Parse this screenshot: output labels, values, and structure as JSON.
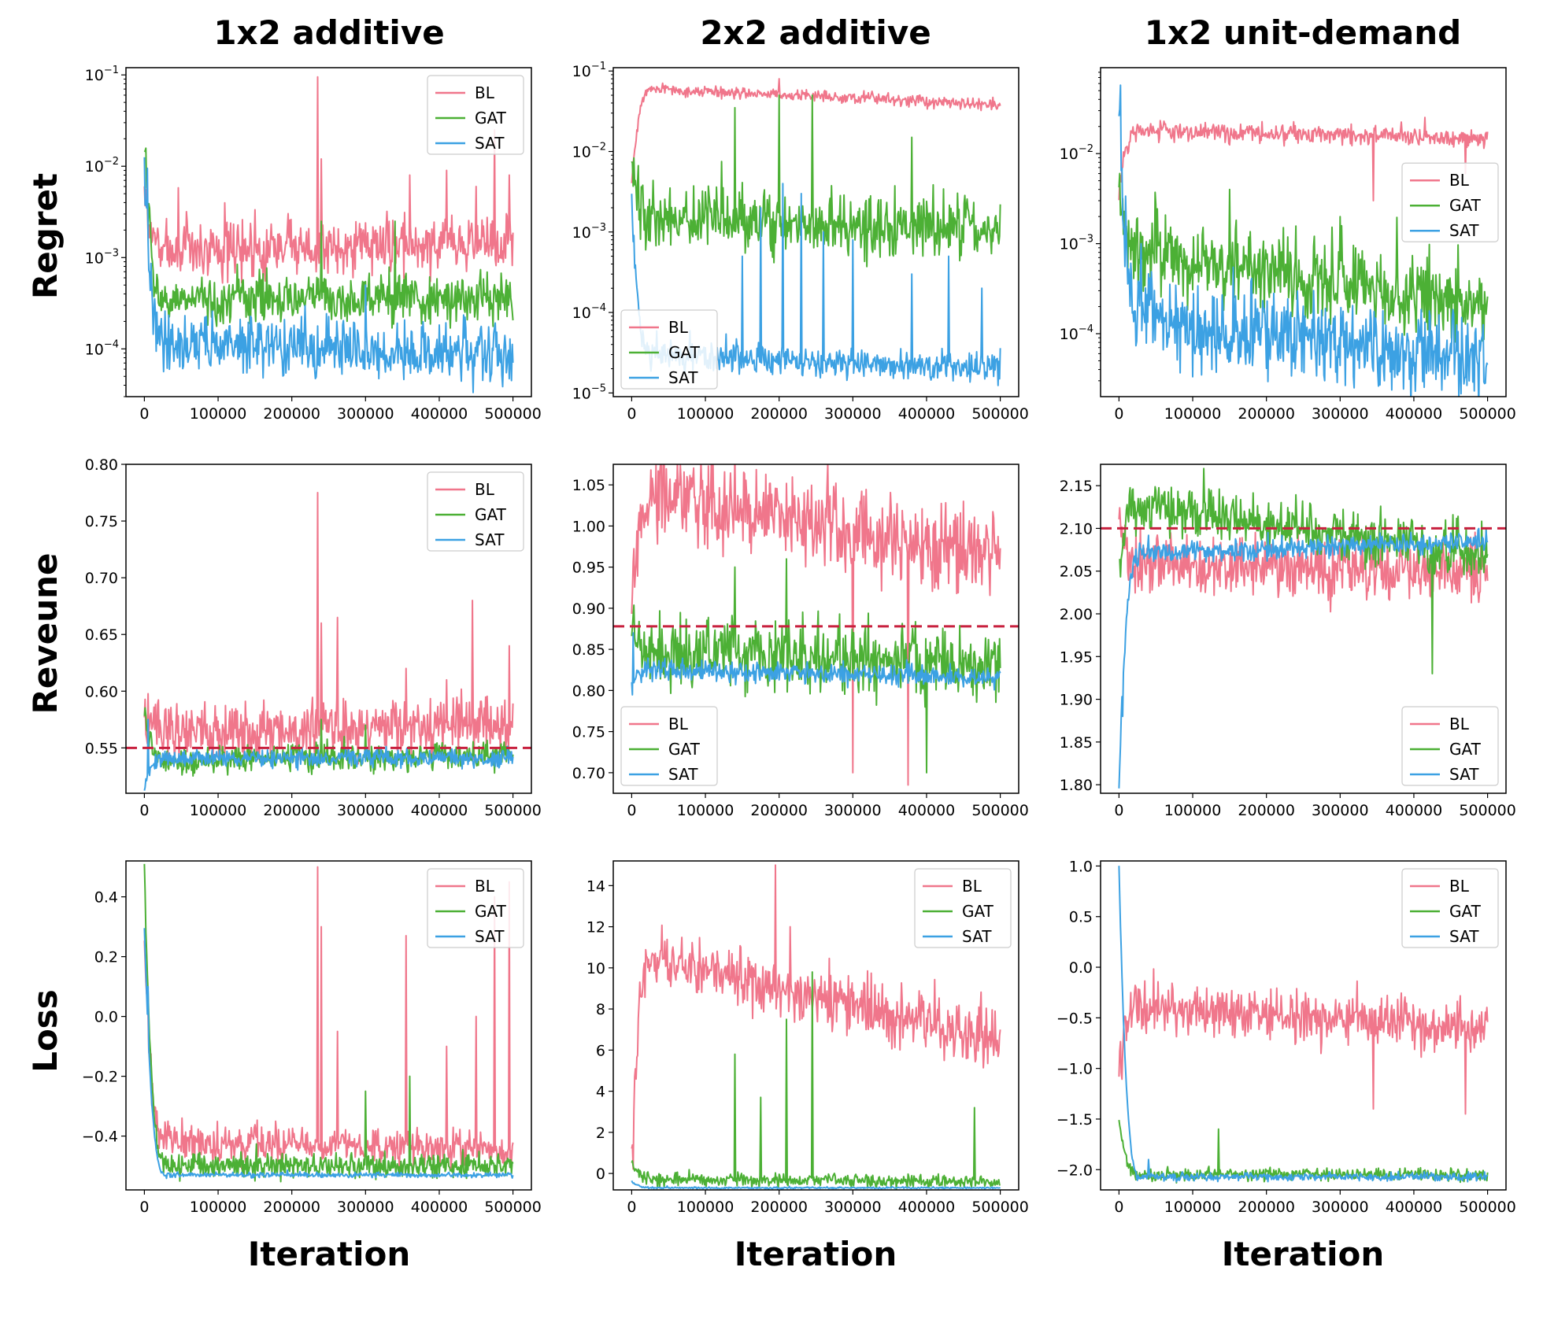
{
  "colors": {
    "BL": "#f0768b",
    "GAT": "#4cb035",
    "SAT": "#3ca1e3",
    "reference": "#c8203e"
  },
  "columns": [
    "1x2 additive",
    "2x2 additive",
    "1x2 unit-demand"
  ],
  "rows": [
    "Regret",
    "Reveune",
    "Loss"
  ],
  "xlabel": "Iteration",
  "chart_data": [
    {
      "type": "line",
      "title": "1x2 additive",
      "ylabel": "Regret",
      "yscale": "log",
      "ylim": [
        3e-05,
        0.12
      ],
      "xlim": [
        -25000,
        525000
      ],
      "xticks": [
        "0",
        "100000",
        "200000",
        "300000",
        "400000",
        "500000"
      ],
      "yticks": [
        {
          "v": 0.1,
          "base": "10",
          "exp": "−1"
        },
        {
          "v": 0.01,
          "base": "10",
          "exp": "−2"
        },
        {
          "v": 0.001,
          "base": "10",
          "exp": "−3"
        },
        {
          "v": 0.0001,
          "base": "10",
          "exp": "−4"
        }
      ],
      "legend": {
        "position": "top-right",
        "entries": [
          "BL",
          "GAT",
          "SAT"
        ]
      },
      "series": [
        {
          "name": "BL",
          "start": 0.005,
          "end": 0.0015,
          "mid": 0.0012,
          "noise": 0.35,
          "spikes": [
            [
              235000,
              0.095
            ],
            [
              240000,
              0.012
            ],
            [
              360000,
              0.008
            ],
            [
              410000,
              0.009
            ],
            [
              450000,
              0.006
            ],
            [
              475000,
              0.025
            ],
            [
              495000,
              0.008
            ]
          ]
        },
        {
          "name": "GAT",
          "start": 0.02,
          "end": 0.00035,
          "mid": 0.00035,
          "noise": 0.3,
          "spikes": [
            [
              240000,
              0.0025
            ],
            [
              340000,
              0.0025
            ]
          ]
        },
        {
          "name": "SAT",
          "start": 0.008,
          "end": 8e-05,
          "mid": 0.00012,
          "noise": 0.35,
          "spikes": [
            [
              300000,
              0.0005
            ]
          ]
        }
      ]
    },
    {
      "type": "line",
      "title": "2x2 additive",
      "ylabel": "Regret",
      "yscale": "log",
      "ylim": [
        9e-06,
        0.11
      ],
      "xlim": [
        -25000,
        525000
      ],
      "xticks": [
        "0",
        "100000",
        "200000",
        "300000",
        "400000",
        "500000"
      ],
      "yticks": [
        {
          "v": 0.1,
          "base": "10",
          "exp": "−1"
        },
        {
          "v": 0.01,
          "base": "10",
          "exp": "−2"
        },
        {
          "v": 0.001,
          "base": "10",
          "exp": "−3"
        },
        {
          "v": 0.0001,
          "base": "10",
          "exp": "−4"
        },
        {
          "v": 1e-05,
          "base": "10",
          "exp": "−5"
        }
      ],
      "legend": {
        "position": "bottom-left",
        "entries": [
          "BL",
          "GAT",
          "SAT"
        ]
      },
      "series": [
        {
          "name": "BL",
          "start": 0.004,
          "end": 0.038,
          "mid": 0.06,
          "noise": 0.08,
          "spikes": [
            [
              200000,
              0.08
            ]
          ]
        },
        {
          "name": "GAT",
          "start": 0.006,
          "end": 0.001,
          "mid": 0.0015,
          "noise": 0.45,
          "spikes": [
            [
              140000,
              0.035
            ],
            [
              200000,
              0.05
            ],
            [
              245000,
              0.05
            ],
            [
              380000,
              0.015
            ]
          ]
        },
        {
          "name": "SAT",
          "start": 0.0025,
          "end": 2e-05,
          "mid": 3e-05,
          "noise": 0.2,
          "spikes": [
            [
              150000,
              0.0005
            ],
            [
              175000,
              0.002
            ],
            [
              205000,
              0.004
            ],
            [
              230000,
              0.003
            ],
            [
              260000,
              0.001
            ],
            [
              300000,
              0.0008
            ],
            [
              380000,
              0.0003
            ],
            [
              430000,
              0.0005
            ],
            [
              475000,
              0.0002
            ]
          ]
        }
      ]
    },
    {
      "type": "line",
      "title": "1x2 unit-demand",
      "ylabel": "Regret",
      "yscale": "log",
      "ylim": [
        2e-05,
        0.09
      ],
      "xlim": [
        -25000,
        525000
      ],
      "xticks": [
        "0",
        "100000",
        "200000",
        "300000",
        "400000",
        "500000"
      ],
      "yticks": [
        {
          "v": 0.01,
          "base": "10",
          "exp": "−2"
        },
        {
          "v": 0.001,
          "base": "10",
          "exp": "−3"
        },
        {
          "v": 0.0001,
          "base": "10",
          "exp": "−4"
        }
      ],
      "legend": {
        "position": "center-right",
        "entries": [
          "BL",
          "GAT",
          "SAT"
        ]
      },
      "series": [
        {
          "name": "BL",
          "start": 0.004,
          "end": 0.015,
          "mid": 0.018,
          "noise": 0.12,
          "spikes": [
            [
              345000,
              0.003
            ],
            [
              470000,
              0.006
            ]
          ]
        },
        {
          "name": "GAT",
          "start": 0.004,
          "end": 0.0002,
          "mid": 0.0008,
          "noise": 0.5,
          "spikes": [
            [
              150000,
              0.004
            ],
            [
              300000,
              0.002
            ]
          ]
        },
        {
          "name": "SAT",
          "start": 0.06,
          "end": 5e-05,
          "mid": 0.00015,
          "noise": 0.55,
          "spikes": [
            [
              30000,
              0.001
            ]
          ]
        }
      ]
    },
    {
      "type": "line",
      "title": "",
      "ylabel": "Reveune",
      "yscale": "linear",
      "ylim": [
        0.51,
        0.8
      ],
      "xlim": [
        -25000,
        525000
      ],
      "xticks": [
        "0",
        "100000",
        "200000",
        "300000",
        "400000",
        "500000"
      ],
      "yticks": [
        {
          "v": 0.55,
          "label": "0.55"
        },
        {
          "v": 0.6,
          "label": "0.60"
        },
        {
          "v": 0.65,
          "label": "0.65"
        },
        {
          "v": 0.7,
          "label": "0.70"
        },
        {
          "v": 0.75,
          "label": "0.75"
        },
        {
          "v": 0.8,
          "label": "0.80"
        }
      ],
      "reference_line": 0.55,
      "legend": {
        "position": "top-right",
        "entries": [
          "BL",
          "GAT",
          "SAT"
        ]
      },
      "series": [
        {
          "name": "BL",
          "start": 0.585,
          "end": 0.57,
          "mid": 0.565,
          "noise": 0.012,
          "spikes": [
            [
              235000,
              0.775
            ],
            [
              240000,
              0.66
            ],
            [
              262000,
              0.665
            ],
            [
              355000,
              0.62
            ],
            [
              410000,
              0.61
            ],
            [
              445000,
              0.68
            ],
            [
              495000,
              0.64
            ]
          ]
        },
        {
          "name": "GAT",
          "start": 0.58,
          "end": 0.545,
          "mid": 0.538,
          "noise": 0.006,
          "spikes": [
            [
              240000,
              0.575
            ],
            [
              300000,
              0.57
            ]
          ]
        },
        {
          "name": "SAT",
          "start": 0.52,
          "end": 0.542,
          "mid": 0.54,
          "noise": 0.004,
          "spikes": [
            [
              5000,
              0.575
            ]
          ]
        }
      ]
    },
    {
      "type": "line",
      "title": "",
      "ylabel": "Reveune",
      "yscale": "linear",
      "ylim": [
        0.675,
        1.075
      ],
      "xlim": [
        -25000,
        525000
      ],
      "xticks": [
        "0",
        "100000",
        "200000",
        "300000",
        "400000",
        "500000"
      ],
      "yticks": [
        {
          "v": 0.7,
          "label": "0.70"
        },
        {
          "v": 0.75,
          "label": "0.75"
        },
        {
          "v": 0.8,
          "label": "0.80"
        },
        {
          "v": 0.85,
          "label": "0.85"
        },
        {
          "v": 0.9,
          "label": "0.90"
        },
        {
          "v": 0.95,
          "label": "0.95"
        },
        {
          "v": 1.0,
          "label": "1.00"
        },
        {
          "v": 1.05,
          "label": "1.05"
        }
      ],
      "reference_line": 0.878,
      "legend": {
        "position": "bottom-left",
        "entries": [
          "BL",
          "GAT",
          "SAT"
        ]
      },
      "series": [
        {
          "name": "BL",
          "start": 0.87,
          "end": 0.96,
          "mid": 1.04,
          "noise": 0.025,
          "spikes": [
            [
              300000,
              0.7
            ],
            [
              375000,
              0.685
            ],
            [
              450000,
              1.03
            ]
          ]
        },
        {
          "name": "GAT",
          "start": 0.88,
          "end": 0.83,
          "mid": 0.85,
          "noise": 0.02,
          "spikes": [
            [
              140000,
              0.95
            ],
            [
              210000,
              0.96
            ],
            [
              400000,
              0.7
            ]
          ]
        },
        {
          "name": "SAT",
          "start": 0.8,
          "end": 0.815,
          "mid": 0.825,
          "noise": 0.006,
          "spikes": [
            [
              2000,
              0.87
            ]
          ]
        }
      ]
    },
    {
      "type": "line",
      "title": "",
      "ylabel": "Reveune",
      "yscale": "linear",
      "ylim": [
        1.79,
        2.175
      ],
      "xlim": [
        -25000,
        525000
      ],
      "xticks": [
        "0",
        "100000",
        "200000",
        "300000",
        "400000",
        "500000"
      ],
      "yticks": [
        {
          "v": 1.8,
          "label": "1.80"
        },
        {
          "v": 1.85,
          "label": "1.85"
        },
        {
          "v": 1.9,
          "label": "1.90"
        },
        {
          "v": 1.95,
          "label": "1.95"
        },
        {
          "v": 2.0,
          "label": "2.00"
        },
        {
          "v": 2.05,
          "label": "2.05"
        },
        {
          "v": 2.1,
          "label": "2.10"
        },
        {
          "v": 2.15,
          "label": "2.15"
        }
      ],
      "reference_line": 2.1,
      "legend": {
        "position": "bottom-right",
        "entries": [
          "BL",
          "GAT",
          "SAT"
        ]
      },
      "series": [
        {
          "name": "BL",
          "start": 2.12,
          "end": 2.05,
          "mid": 2.06,
          "noise": 0.018,
          "spikes": [
            [
              345000,
              2.1
            ]
          ]
        },
        {
          "name": "GAT",
          "start": 2.05,
          "end": 2.07,
          "mid": 2.125,
          "noise": 0.015,
          "spikes": [
            [
              115000,
              2.17
            ],
            [
              425000,
              1.93
            ]
          ]
        },
        {
          "name": "SAT",
          "start": 1.8,
          "end": 2.085,
          "mid": 2.07,
          "noise": 0.006,
          "spikes": [
            [
              5000,
              1.88
            ]
          ]
        }
      ]
    },
    {
      "type": "line",
      "title": "",
      "ylabel": "Loss",
      "yscale": "linear",
      "ylim": [
        -0.58,
        0.52
      ],
      "xlim": [
        -25000,
        525000
      ],
      "xticks": [
        "0",
        "100000",
        "200000",
        "300000",
        "400000",
        "500000"
      ],
      "yticks": [
        {
          "v": -0.4,
          "label": "−0.4"
        },
        {
          "v": -0.2,
          "label": "−0.2"
        },
        {
          "v": 0.0,
          "label": "0.0"
        },
        {
          "v": 0.2,
          "label": "0.2"
        },
        {
          "v": 0.4,
          "label": "0.4"
        }
      ],
      "legend": {
        "position": "top-right",
        "entries": [
          "BL",
          "GAT",
          "SAT"
        ]
      },
      "series": [
        {
          "name": "BL",
          "start": 0.25,
          "end": -0.45,
          "mid": -0.42,
          "noise": 0.03,
          "spikes": [
            [
              235000,
              0.5
            ],
            [
              240000,
              0.3
            ],
            [
              262000,
              -0.05
            ],
            [
              355000,
              0.27
            ],
            [
              410000,
              -0.1
            ],
            [
              450000,
              0.0
            ],
            [
              475000,
              0.4
            ],
            [
              495000,
              0.45
            ]
          ]
        },
        {
          "name": "GAT",
          "start": 0.5,
          "end": -0.5,
          "mid": -0.5,
          "noise": 0.02,
          "spikes": [
            [
              300000,
              -0.25
            ],
            [
              360000,
              -0.2
            ]
          ]
        },
        {
          "name": "SAT",
          "start": 0.3,
          "end": -0.53,
          "mid": -0.53,
          "noise": 0.004,
          "spikes": [
            [
              5000,
              0.1
            ]
          ]
        }
      ]
    },
    {
      "type": "line",
      "title": "",
      "ylabel": "Loss",
      "yscale": "linear",
      "ylim": [
        -0.8,
        15.2
      ],
      "xlim": [
        -25000,
        525000
      ],
      "xticks": [
        "0",
        "100000",
        "200000",
        "300000",
        "400000",
        "500000"
      ],
      "yticks": [
        {
          "v": 0,
          "label": "0"
        },
        {
          "v": 2,
          "label": "2"
        },
        {
          "v": 4,
          "label": "4"
        },
        {
          "v": 6,
          "label": "6"
        },
        {
          "v": 8,
          "label": "8"
        },
        {
          "v": 10,
          "label": "10"
        },
        {
          "v": 12,
          "label": "12"
        },
        {
          "v": 14,
          "label": "14"
        }
      ],
      "legend": {
        "position": "top-right",
        "entries": [
          "BL",
          "GAT",
          "SAT"
        ]
      },
      "series": [
        {
          "name": "BL",
          "start": 0.0,
          "end": 6.5,
          "mid": 10.5,
          "noise": 0.7,
          "spikes": [
            [
              195000,
              15.0
            ],
            [
              215000,
              12.0
            ]
          ]
        },
        {
          "name": "GAT",
          "start": 0.5,
          "end": -0.4,
          "mid": -0.3,
          "noise": 0.15,
          "spikes": [
            [
              140000,
              5.8
            ],
            [
              175000,
              3.7
            ],
            [
              210000,
              7.5
            ],
            [
              245000,
              9.8
            ],
            [
              465000,
              3.2
            ]
          ]
        },
        {
          "name": "SAT",
          "start": -0.4,
          "end": -0.7,
          "mid": -0.7,
          "noise": 0.02,
          "spikes": []
        }
      ]
    },
    {
      "type": "line",
      "title": "",
      "ylabel": "Loss",
      "yscale": "linear",
      "ylim": [
        -2.2,
        1.05
      ],
      "xlim": [
        -25000,
        525000
      ],
      "xticks": [
        "0",
        "100000",
        "200000",
        "300000",
        "400000",
        "500000"
      ],
      "yticks": [
        {
          "v": -2.0,
          "label": "−2.0"
        },
        {
          "v": -1.5,
          "label": "−1.5"
        },
        {
          "v": -1.0,
          "label": "−1.0"
        },
        {
          "v": -0.5,
          "label": "−0.5"
        },
        {
          "v": 0.0,
          "label": "0.0"
        },
        {
          "v": 0.5,
          "label": "0.5"
        },
        {
          "v": 1.0,
          "label": "1.0"
        }
      ],
      "legend": {
        "position": "top-right",
        "entries": [
          "BL",
          "GAT",
          "SAT"
        ]
      },
      "series": [
        {
          "name": "BL",
          "start": -1.0,
          "end": -0.6,
          "mid": -0.4,
          "noise": 0.12,
          "spikes": [
            [
              345000,
              -1.4
            ],
            [
              470000,
              -1.45
            ]
          ]
        },
        {
          "name": "GAT",
          "start": -1.5,
          "end": -2.05,
          "mid": -2.05,
          "noise": 0.03,
          "spikes": [
            [
              135000,
              -1.6
            ]
          ]
        },
        {
          "name": "SAT",
          "start": 1.0,
          "end": -2.07,
          "mid": -2.07,
          "noise": 0.02,
          "spikes": [
            [
              40000,
              -1.9
            ]
          ]
        }
      ]
    }
  ]
}
